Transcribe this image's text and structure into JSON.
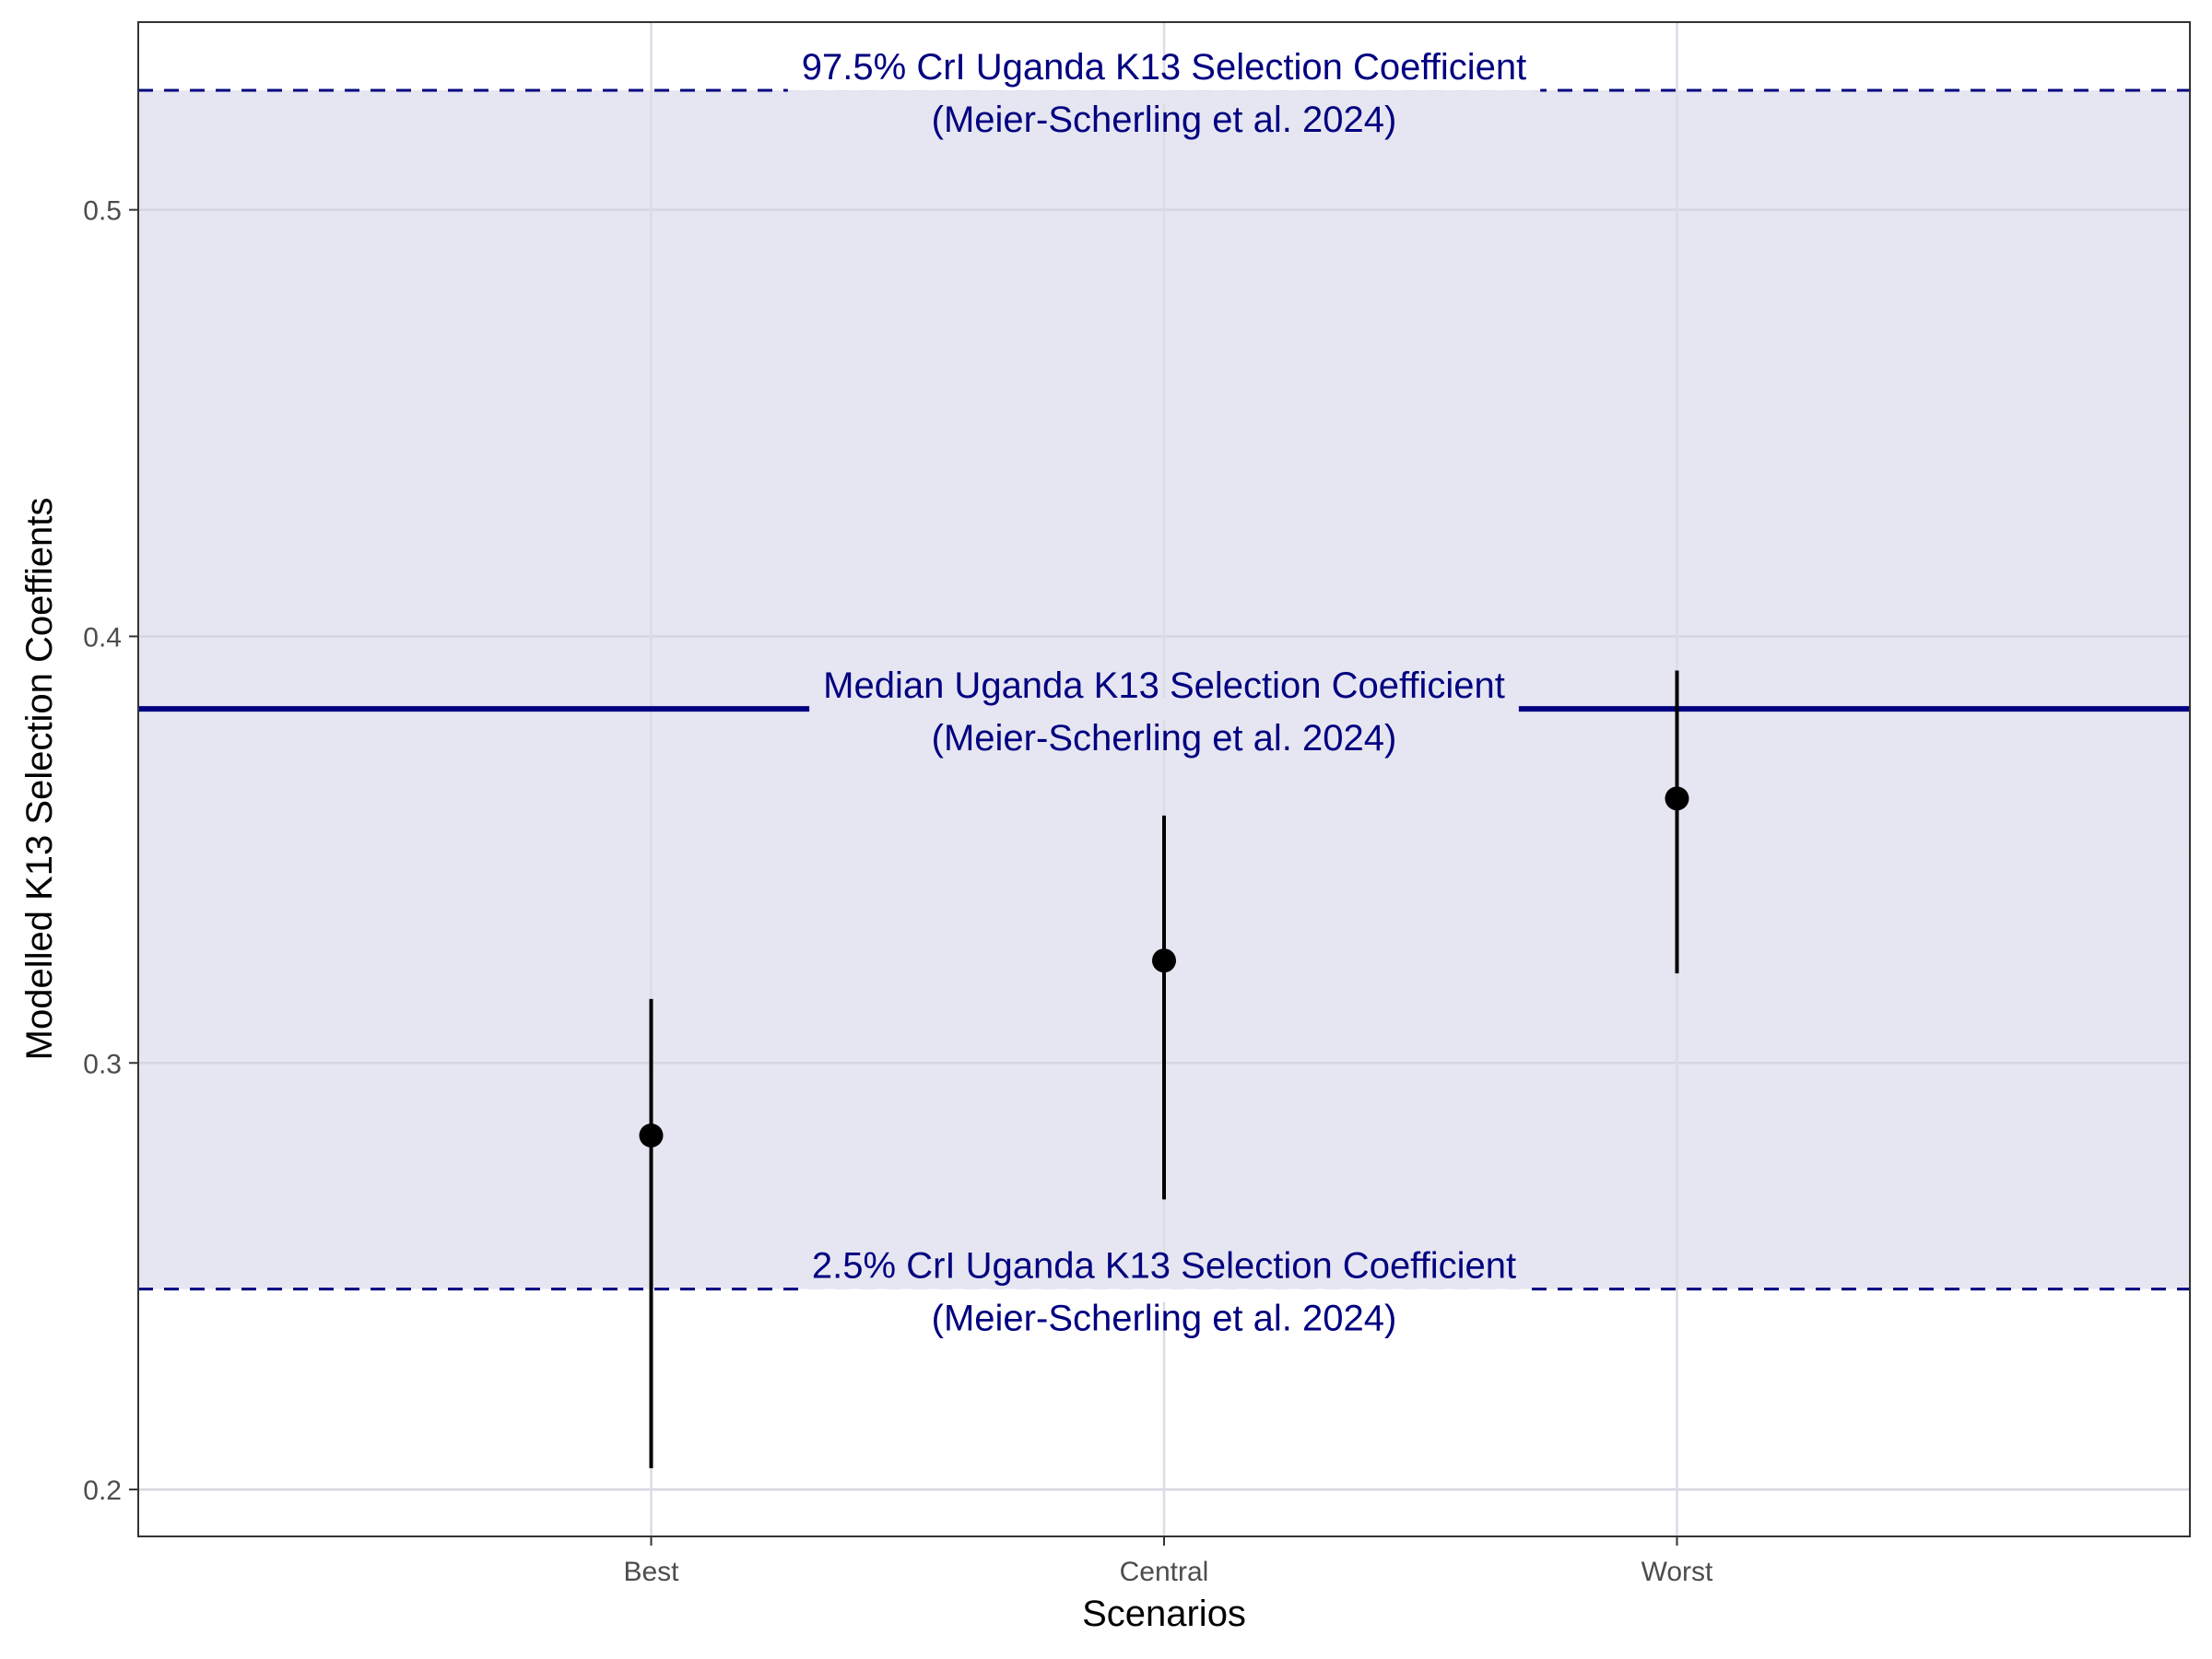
{
  "chart_data": {
    "type": "scatter",
    "subtype": "point-range",
    "title": "",
    "xlabel": "Scenarios",
    "ylabel": "Modelled K13 Selection Coeffients",
    "categories": [
      "Best",
      "Central",
      "Worst"
    ],
    "series": [
      {
        "values": [
          0.283,
          0.324,
          0.362
        ],
        "lower": [
          0.205,
          0.268,
          0.321
        ],
        "upper": [
          0.315,
          0.358,
          0.392
        ]
      }
    ],
    "ylim": [
      0.189,
      0.544
    ],
    "yticks": [
      0.2,
      0.3,
      0.4,
      0.5
    ],
    "ytick_labels": [
      "0.2",
      "0.3",
      "0.4",
      "0.5"
    ],
    "grid": true,
    "reference": {
      "median": 0.383,
      "lower": 0.247,
      "upper": 0.528,
      "band_color": "#e6e6f2",
      "line_color": "#000080",
      "annotations": [
        {
          "position": "upper",
          "line1": "97.5% CrI Uganda K13 Selection Coefficient",
          "line2": "(Meier-Scherling et al. 2024)"
        },
        {
          "position": "median",
          "line1": "Median Uganda K13 Selection Coefficient",
          "line2": "(Meier-Scherling et al. 2024)"
        },
        {
          "position": "lower",
          "line1": "2.5% CrI Uganda K13 Selection Coefficient",
          "line2": "(Meier-Scherling et al. 2024)"
        }
      ]
    }
  }
}
